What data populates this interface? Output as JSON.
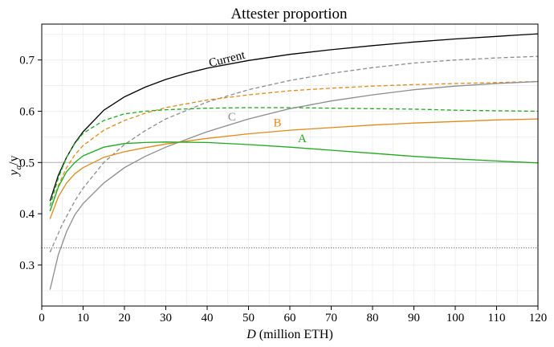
{
  "chart_data": {
    "type": "line",
    "title": "Attester proportion",
    "xlabel": "D (million ETH)",
    "xlabel_parts": {
      "var": "D",
      "rest": " (million ETH)"
    },
    "ylabel": "ya/y",
    "ylabel_parts": {
      "main": "y",
      "sub": "a",
      "rest": "/y"
    },
    "xlim": [
      0,
      120
    ],
    "ylim": [
      0.22,
      0.77
    ],
    "xticks": [
      0,
      10,
      20,
      30,
      40,
      50,
      60,
      70,
      80,
      90,
      100,
      110,
      120
    ],
    "yticks": [
      0.3,
      0.4,
      0.5,
      0.6,
      0.7
    ],
    "grid": true,
    "reference_lines": [
      {
        "y": 0.5,
        "style": "solid",
        "color": "#b0b0b0"
      },
      {
        "y": 0.3333,
        "style": "dotted",
        "color": "#555555"
      }
    ],
    "series": [
      {
        "name": "Current",
        "label_at": {
          "x": 45,
          "y": 0.695
        },
        "color": "#000000",
        "dash": "solid",
        "points": [
          [
            2,
            0.425
          ],
          [
            4,
            0.475
          ],
          [
            6,
            0.51
          ],
          [
            8,
            0.538
          ],
          [
            10,
            0.56
          ],
          [
            15,
            0.602
          ],
          [
            20,
            0.628
          ],
          [
            25,
            0.647
          ],
          [
            30,
            0.662
          ],
          [
            35,
            0.674
          ],
          [
            40,
            0.684
          ],
          [
            50,
            0.699
          ],
          [
            60,
            0.711
          ],
          [
            70,
            0.72
          ],
          [
            80,
            0.728
          ],
          [
            90,
            0.735
          ],
          [
            100,
            0.741
          ],
          [
            110,
            0.746
          ],
          [
            120,
            0.751
          ]
        ]
      },
      {
        "name": "",
        "color": "#8c8c8c",
        "dash": "dashed",
        "points": [
          [
            2,
            0.325
          ],
          [
            5,
            0.38
          ],
          [
            8,
            0.425
          ],
          [
            10,
            0.45
          ],
          [
            15,
            0.5
          ],
          [
            20,
            0.535
          ],
          [
            25,
            0.562
          ],
          [
            30,
            0.585
          ],
          [
            40,
            0.618
          ],
          [
            50,
            0.642
          ],
          [
            60,
            0.66
          ],
          [
            70,
            0.674
          ],
          [
            80,
            0.685
          ],
          [
            90,
            0.694
          ],
          [
            100,
            0.7
          ],
          [
            110,
            0.704
          ],
          [
            120,
            0.707
          ]
        ]
      },
      {
        "name": "",
        "color": "#e08a1a",
        "dash": "dashed",
        "points": [
          [
            2,
            0.405
          ],
          [
            4,
            0.455
          ],
          [
            6,
            0.49
          ],
          [
            8,
            0.515
          ],
          [
            10,
            0.533
          ],
          [
            15,
            0.563
          ],
          [
            20,
            0.582
          ],
          [
            25,
            0.596
          ],
          [
            30,
            0.607
          ],
          [
            40,
            0.622
          ],
          [
            50,
            0.632
          ],
          [
            60,
            0.64
          ],
          [
            70,
            0.645
          ],
          [
            80,
            0.649
          ],
          [
            90,
            0.652
          ],
          [
            100,
            0.654
          ],
          [
            110,
            0.656
          ],
          [
            120,
            0.658
          ]
        ]
      },
      {
        "name": "",
        "color": "#1ea81e",
        "dash": "dashed",
        "points": [
          [
            2,
            0.415
          ],
          [
            4,
            0.47
          ],
          [
            6,
            0.51
          ],
          [
            8,
            0.537
          ],
          [
            10,
            0.557
          ],
          [
            15,
            0.582
          ],
          [
            20,
            0.595
          ],
          [
            25,
            0.6
          ],
          [
            30,
            0.603
          ],
          [
            40,
            0.606
          ],
          [
            50,
            0.607
          ],
          [
            60,
            0.607
          ],
          [
            70,
            0.606
          ],
          [
            80,
            0.605
          ],
          [
            90,
            0.604
          ],
          [
            100,
            0.602
          ],
          [
            110,
            0.601
          ],
          [
            120,
            0.6
          ]
        ]
      },
      {
        "name": "C",
        "label_at": {
          "x": 46,
          "y": 0.582
        },
        "color": "#8c8c8c",
        "dash": "solid",
        "points": [
          [
            2,
            0.252
          ],
          [
            4,
            0.32
          ],
          [
            6,
            0.365
          ],
          [
            8,
            0.398
          ],
          [
            10,
            0.42
          ],
          [
            15,
            0.46
          ],
          [
            20,
            0.49
          ],
          [
            25,
            0.512
          ],
          [
            30,
            0.53
          ],
          [
            40,
            0.56
          ],
          [
            50,
            0.585
          ],
          [
            60,
            0.605
          ],
          [
            70,
            0.62
          ],
          [
            80,
            0.632
          ],
          [
            90,
            0.642
          ],
          [
            100,
            0.649
          ],
          [
            110,
            0.654
          ],
          [
            120,
            0.658
          ]
        ]
      },
      {
        "name": "B",
        "label_at": {
          "x": 57,
          "y": 0.57
        },
        "color": "#e08a1a",
        "dash": "solid",
        "points": [
          [
            2,
            0.39
          ],
          [
            4,
            0.433
          ],
          [
            6,
            0.46
          ],
          [
            8,
            0.478
          ],
          [
            10,
            0.49
          ],
          [
            15,
            0.51
          ],
          [
            20,
            0.521
          ],
          [
            25,
            0.529
          ],
          [
            30,
            0.536
          ],
          [
            40,
            0.547
          ],
          [
            50,
            0.556
          ],
          [
            60,
            0.563
          ],
          [
            70,
            0.568
          ],
          [
            80,
            0.573
          ],
          [
            90,
            0.577
          ],
          [
            100,
            0.58
          ],
          [
            110,
            0.583
          ],
          [
            120,
            0.585
          ]
        ]
      },
      {
        "name": "A",
        "label_at": {
          "x": 63,
          "y": 0.54
        },
        "color": "#1ea81e",
        "dash": "solid",
        "points": [
          [
            2,
            0.405
          ],
          [
            4,
            0.452
          ],
          [
            6,
            0.482
          ],
          [
            8,
            0.5
          ],
          [
            10,
            0.513
          ],
          [
            15,
            0.53
          ],
          [
            20,
            0.537
          ],
          [
            25,
            0.539
          ],
          [
            30,
            0.54
          ],
          [
            40,
            0.539
          ],
          [
            50,
            0.535
          ],
          [
            60,
            0.53
          ],
          [
            70,
            0.524
          ],
          [
            80,
            0.518
          ],
          [
            90,
            0.512
          ],
          [
            100,
            0.507
          ],
          [
            110,
            0.503
          ],
          [
            120,
            0.499
          ]
        ]
      }
    ]
  }
}
